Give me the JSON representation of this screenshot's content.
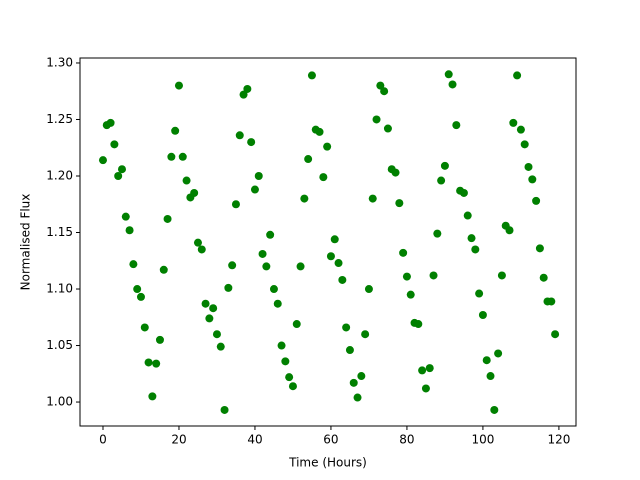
{
  "chart_data": {
    "type": "scatter",
    "xlabel": "Time (Hours)",
    "ylabel": "Normalised Flux",
    "series": [
      {
        "color": "#008000",
        "x": [
          0,
          1,
          2,
          3,
          4,
          5,
          6,
          7,
          8,
          9,
          10,
          11,
          12,
          13,
          14,
          15,
          16,
          17,
          18,
          19,
          20,
          21,
          22,
          23,
          24,
          25,
          26,
          27,
          28,
          29,
          30,
          31,
          32,
          33,
          34,
          35,
          36,
          37,
          38,
          39,
          40,
          41,
          42,
          43,
          44,
          45,
          46,
          47,
          48,
          49,
          50,
          51,
          52,
          53,
          54,
          55,
          56,
          57,
          58,
          59,
          60,
          61,
          62,
          63,
          64,
          65,
          66,
          67,
          68,
          69,
          70,
          71,
          72,
          73,
          74,
          75,
          76,
          77,
          78,
          79,
          80,
          81,
          82,
          83,
          84,
          85,
          86,
          87,
          88,
          89,
          90,
          91,
          92,
          93,
          94,
          95,
          96,
          97,
          98,
          99,
          100,
          101,
          102,
          103,
          104,
          105,
          106,
          107,
          108,
          109,
          110,
          111,
          112,
          113,
          114,
          115,
          116,
          117,
          118,
          119
        ],
        "values": [
          1.214,
          1.245,
          1.247,
          1.228,
          1.2,
          1.206,
          1.164,
          1.152,
          1.122,
          1.1,
          1.093,
          1.066,
          1.035,
          1.005,
          1.034,
          1.055,
          1.117,
          1.162,
          1.217,
          1.24,
          1.28,
          1.217,
          1.196,
          1.181,
          1.185,
          1.141,
          1.135,
          1.087,
          1.074,
          1.083,
          1.06,
          1.049,
          0.993,
          1.101,
          1.121,
          1.175,
          1.236,
          1.272,
          1.277,
          1.23,
          1.188,
          1.2,
          1.131,
          1.12,
          1.148,
          1.1,
          1.087,
          1.05,
          1.036,
          1.022,
          1.014,
          1.069,
          1.12,
          1.18,
          1.215,
          1.289,
          1.241,
          1.239,
          1.199,
          1.226,
          1.129,
          1.144,
          1.123,
          1.108,
          1.066,
          1.046,
          1.017,
          1.004,
          1.023,
          1.06,
          1.1,
          1.18,
          1.25,
          1.28,
          1.275,
          1.242,
          1.206,
          1.203,
          1.176,
          1.132,
          1.111,
          1.095,
          1.07,
          1.069,
          1.028,
          1.012,
          1.03,
          1.112,
          1.149,
          1.196,
          1.209,
          1.29,
          1.281,
          1.245,
          1.187,
          1.185,
          1.165,
          1.145,
          1.135,
          1.096,
          1.077,
          1.037,
          1.023,
          0.993,
          1.043,
          1.112,
          1.156,
          1.152,
          1.247,
          1.289,
          1.241,
          1.228,
          1.208,
          1.197,
          1.178,
          1.136,
          1.11,
          1.089,
          1.089,
          1.06
        ]
      }
    ],
    "xlim": [
      -6.05,
      124.5
    ],
    "ylim": [
      0.9788,
      1.3044
    ],
    "xticks": [
      0,
      20,
      40,
      60,
      80,
      100,
      120
    ],
    "yticks": [
      {
        "value": 1,
        "label": "1.00"
      },
      1.05,
      {
        "value": 1.1,
        "label": "1.10"
      },
      1.15,
      {
        "value": 1.2,
        "label": "1.20"
      },
      1.25,
      {
        "value": 1.3,
        "label": "1.30"
      }
    ]
  }
}
